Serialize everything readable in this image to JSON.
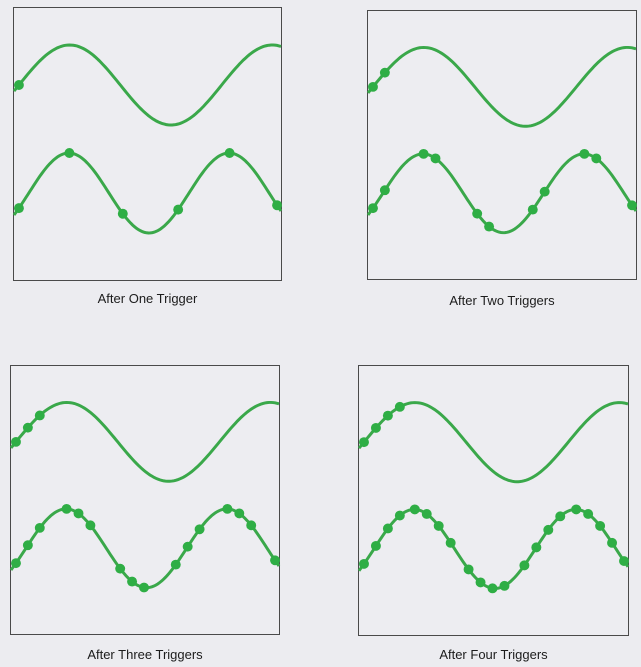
{
  "panels": [
    {
      "caption": "After One Trigger",
      "triggers": 1
    },
    {
      "caption": "After Two Triggers",
      "triggers": 2
    },
    {
      "caption": "After Three Triggers",
      "triggers": 3
    },
    {
      "caption": "After Four Triggers",
      "triggers": 4
    }
  ],
  "colors": {
    "trace": "#3aa84a",
    "dot": "#2fae45",
    "frame": "#4a4a4a"
  }
}
